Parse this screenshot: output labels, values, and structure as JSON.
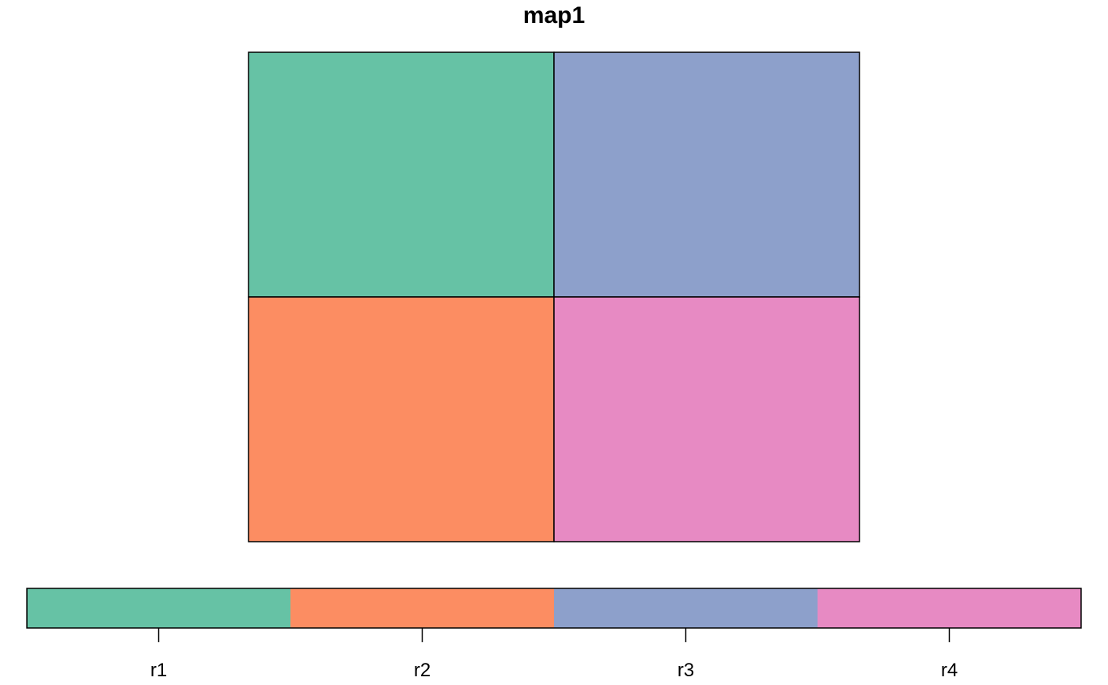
{
  "chart_data": {
    "type": "heatmap",
    "title": "map1",
    "grid": {
      "rows": 2,
      "cols": 2,
      "cells": [
        [
          "r1",
          "r3"
        ],
        [
          "r2",
          "r4"
        ]
      ]
    },
    "legend": {
      "position": "bottom",
      "categories": [
        "r1",
        "r2",
        "r3",
        "r4"
      ],
      "colors": [
        "#66C2A5",
        "#FC8D62",
        "#8DA0CB",
        "#E78AC3"
      ]
    },
    "border_color": "#000000"
  }
}
